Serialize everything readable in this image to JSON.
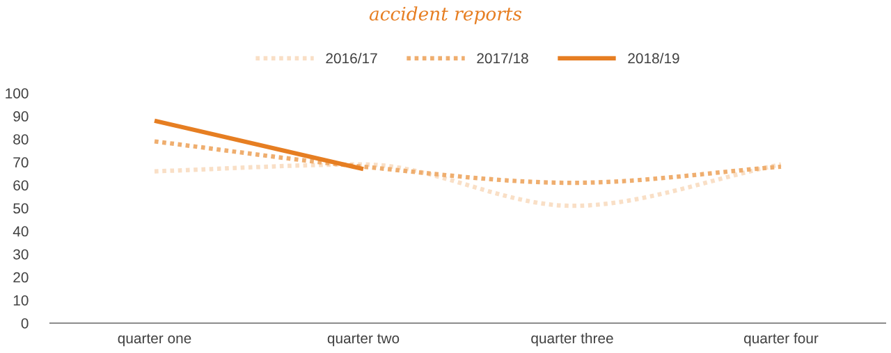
{
  "chart_data": {
    "type": "line",
    "title": "accident reports",
    "categories": [
      "quarter one",
      "quarter two",
      "quarter three",
      "quarter four"
    ],
    "series": [
      {
        "name": "2016/17",
        "color": "#f9dfc6",
        "values": [
          66,
          69,
          51,
          69
        ],
        "line_style": "dotted"
      },
      {
        "name": "2017/18",
        "color": "#efae6f",
        "values": [
          79,
          68,
          61,
          68
        ],
        "line_style": "dotted"
      },
      {
        "name": "2018/19",
        "color": "#e67e22",
        "values": [
          88,
          67,
          null,
          null
        ],
        "line_style": "solid"
      }
    ],
    "ylim": [
      0,
      100
    ],
    "yticks": [
      0,
      10,
      20,
      30,
      40,
      50,
      60,
      70,
      80,
      90,
      100
    ],
    "grid": false,
    "legend": "top",
    "marker": "none"
  }
}
